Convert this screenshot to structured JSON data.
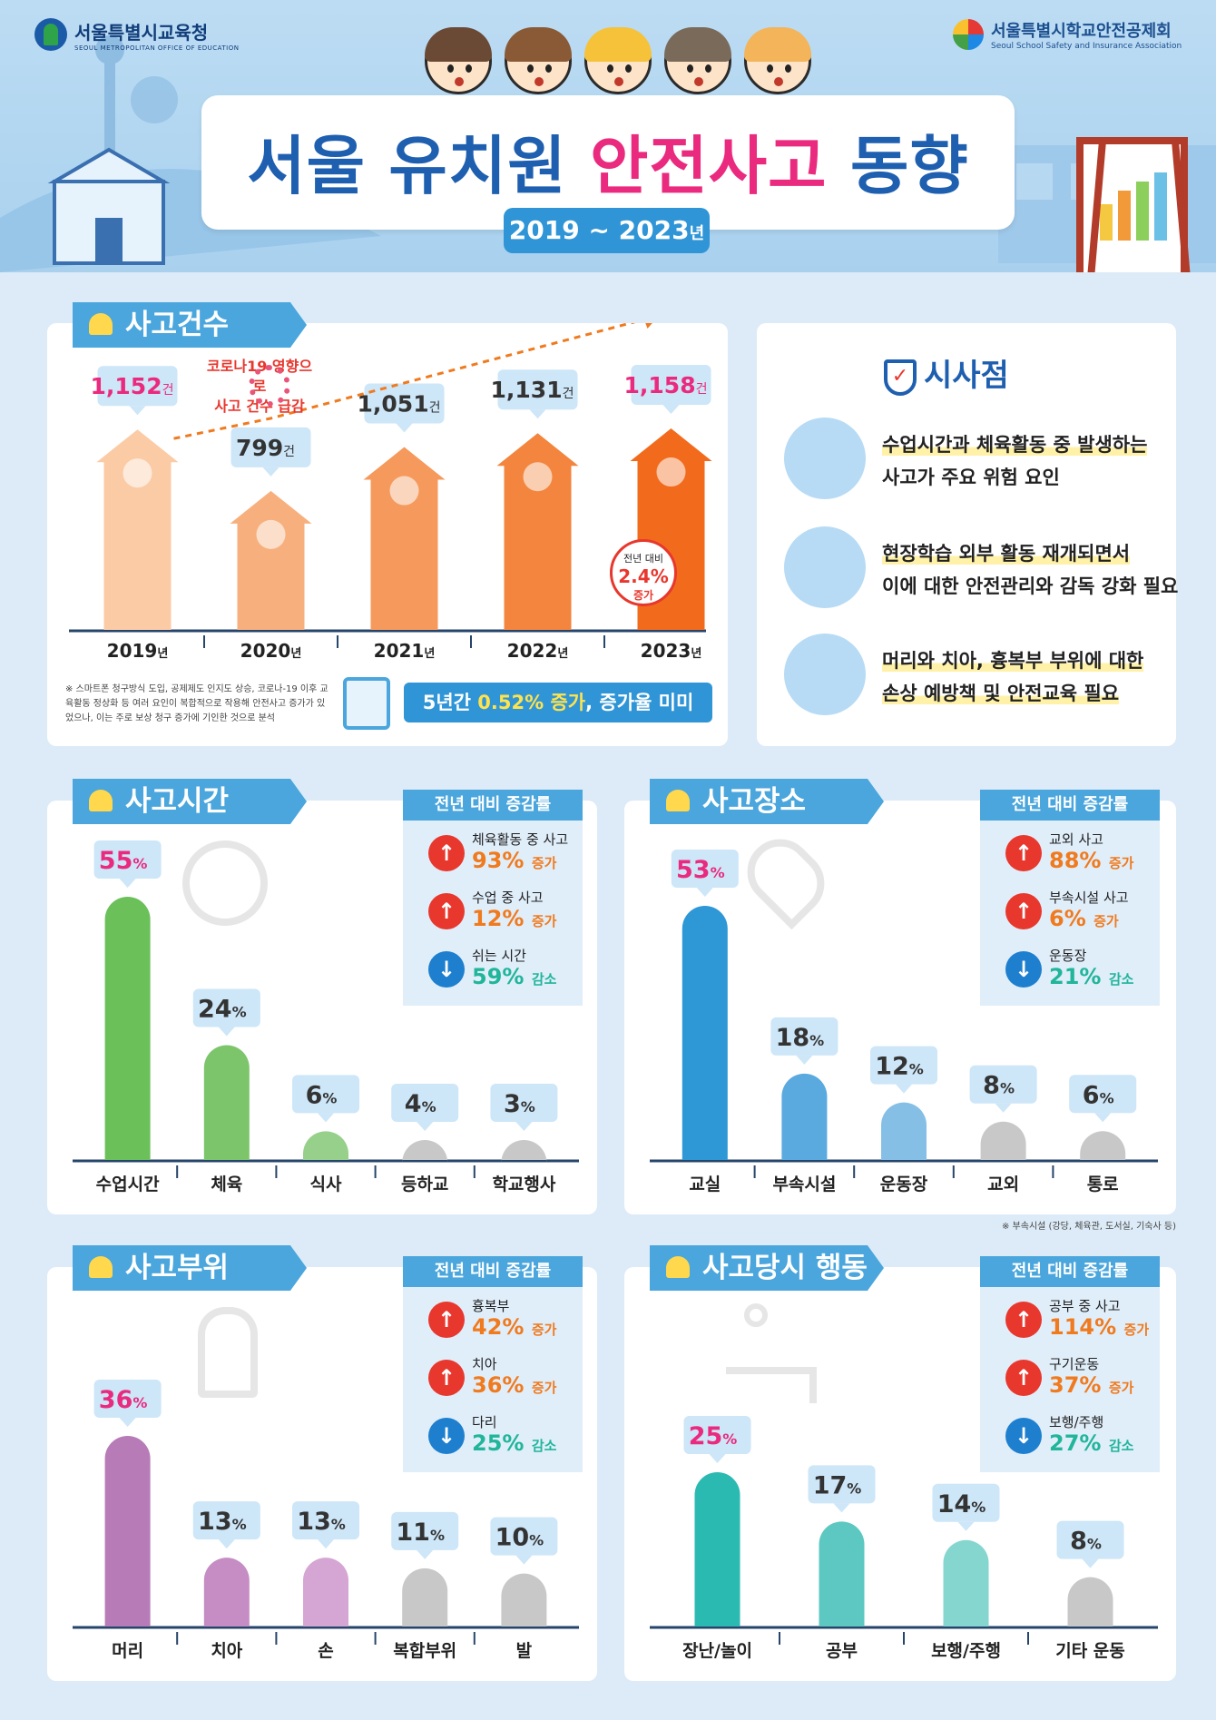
{
  "header": {
    "org_left": "서울특별시교육청",
    "org_left_en": "SEOUL METROPOLITAN OFFICE OF EDUCATION",
    "org_right": "서울특별시학교안전공제회",
    "org_right_en": "Seoul School Safety and Insurance Association",
    "title_a": "서울 유치원 ",
    "title_b": "안전사고",
    "title_c": " 동향",
    "years": "2019 ~ 2023",
    "years_unit": "년",
    "accent": "#ea2a7e",
    "brand": "#1f5fb0"
  },
  "accidents": {
    "section": "사고건수",
    "covid_note_1": "코로나19 영향으로",
    "covid_note_2": "사고 건수 급감",
    "unit": "건",
    "year_unit": "년",
    "yoy_label": "전년 대비",
    "yoy_value": "2.4%",
    "yoy_dir": "증가",
    "footnote": "※ 스마트폰 청구방식 도입, 공제제도 인지도 상승, 코로나-19 이후 교육활동 정상화 등 여러 요인이 복합적으로 작용해 안전사고 증가가 있었으나, 이는 주로 보상 청구 증가에 기인한 것으로 분석",
    "summary_a": "5년간 ",
    "summary_b": "0.52% 증가",
    "summary_c": ", 증가율 미미"
  },
  "insights": {
    "title": "시사점",
    "items": [
      {
        "icon": "student-desk-icon",
        "line1": "수업시간과 체육활동 중 발생하는",
        "line2": "사고가 주요 위험 요인"
      },
      {
        "icon": "document-care-icon",
        "line1": "현장학습 외부 활동 재개되면서",
        "line2": "이에 대한 안전관리와 감독 강화 필요"
      },
      {
        "icon": "head-injury-icon",
        "line1": "머리와 치아, 흉복부 부위에 대한",
        "line2": "손상 예방책 및 안전교육 필요"
      }
    ]
  },
  "inc_title": "전년 대비 증감률",
  "time_panel": {
    "section": "사고시간",
    "changes": [
      {
        "label": "체육활동 중 사고",
        "value": "93%",
        "dir": "증가",
        "kind": "up"
      },
      {
        "label": "수업 중 사고",
        "value": "12%",
        "dir": "증가",
        "kind": "up"
      },
      {
        "label": "쉬는 시간",
        "value": "59%",
        "dir": "감소",
        "kind": "down"
      }
    ]
  },
  "place_panel": {
    "section": "사고장소",
    "changes": [
      {
        "label": "교외 사고",
        "value": "88%",
        "dir": "증가",
        "kind": "up"
      },
      {
        "label": "부속시설 사고",
        "value": "6%",
        "dir": "증가",
        "kind": "up"
      },
      {
        "label": "운동장",
        "value": "21%",
        "dir": "감소",
        "kind": "down"
      }
    ],
    "footnote": "※ 부속시설 (강당, 체육관, 도서실, 기숙사 등)"
  },
  "body_panel": {
    "section": "사고부위",
    "changes": [
      {
        "label": "흉복부",
        "value": "42%",
        "dir": "증가",
        "kind": "up"
      },
      {
        "label": "치아",
        "value": "36%",
        "dir": "증가",
        "kind": "up"
      },
      {
        "label": "다리",
        "value": "25%",
        "dir": "감소",
        "kind": "down"
      }
    ]
  },
  "action_panel": {
    "section": "사고당시 행동",
    "changes": [
      {
        "label": "공부 중 사고",
        "value": "114%",
        "dir": "증가",
        "kind": "up"
      },
      {
        "label": "구기운동",
        "value": "37%",
        "dir": "증가",
        "kind": "up"
      },
      {
        "label": "보행/주행",
        "value": "27%",
        "dir": "감소",
        "kind": "down"
      }
    ]
  },
  "chart_data": [
    {
      "type": "bar",
      "title": "사고건수",
      "categories": [
        "2019",
        "2020",
        "2021",
        "2022",
        "2023"
      ],
      "values": [
        1152,
        799,
        1051,
        1131,
        1158
      ],
      "value_labels": [
        "1,152",
        "799",
        "1,051",
        "1,131",
        "1,158"
      ],
      "colors": [
        "#fbcba5",
        "#f7b07d",
        "#f59a5c",
        "#f3853e",
        "#f26b1d"
      ]
    },
    {
      "type": "bar",
      "title": "사고시간",
      "categories": [
        "수업시간",
        "체육",
        "식사",
        "등하교",
        "학교행사"
      ],
      "values": [
        55,
        24,
        6,
        4,
        3
      ],
      "colors": [
        "#6cc05a",
        "#7dc56b",
        "#96d08a",
        "#c8c8c8",
        "#c8c8c8"
      ]
    },
    {
      "type": "bar",
      "title": "사고장소",
      "categories": [
        "교실",
        "부속시설",
        "운동장",
        "교외",
        "통로"
      ],
      "values": [
        53,
        18,
        12,
        8,
        6
      ],
      "colors": [
        "#2e97d6",
        "#5aa9df",
        "#86bfe6",
        "#c8c8c8",
        "#c8c8c8"
      ]
    },
    {
      "type": "bar",
      "title": "사고부위",
      "categories": [
        "머리",
        "치아",
        "손",
        "복합부위",
        "발"
      ],
      "values": [
        36,
        13,
        13,
        11,
        10
      ],
      "colors": [
        "#b77cb7",
        "#c58dc4",
        "#d5a6d3",
        "#c8c8c8",
        "#c8c8c8"
      ]
    },
    {
      "type": "bar",
      "title": "사고당시 행동",
      "categories": [
        "장난/놀이",
        "공부",
        "보행/주행",
        "기타 운동"
      ],
      "values": [
        25,
        17,
        14,
        8
      ],
      "colors": [
        "#2bbab1",
        "#5cc8c1",
        "#86d6d0",
        "#c8c8c8"
      ]
    }
  ]
}
